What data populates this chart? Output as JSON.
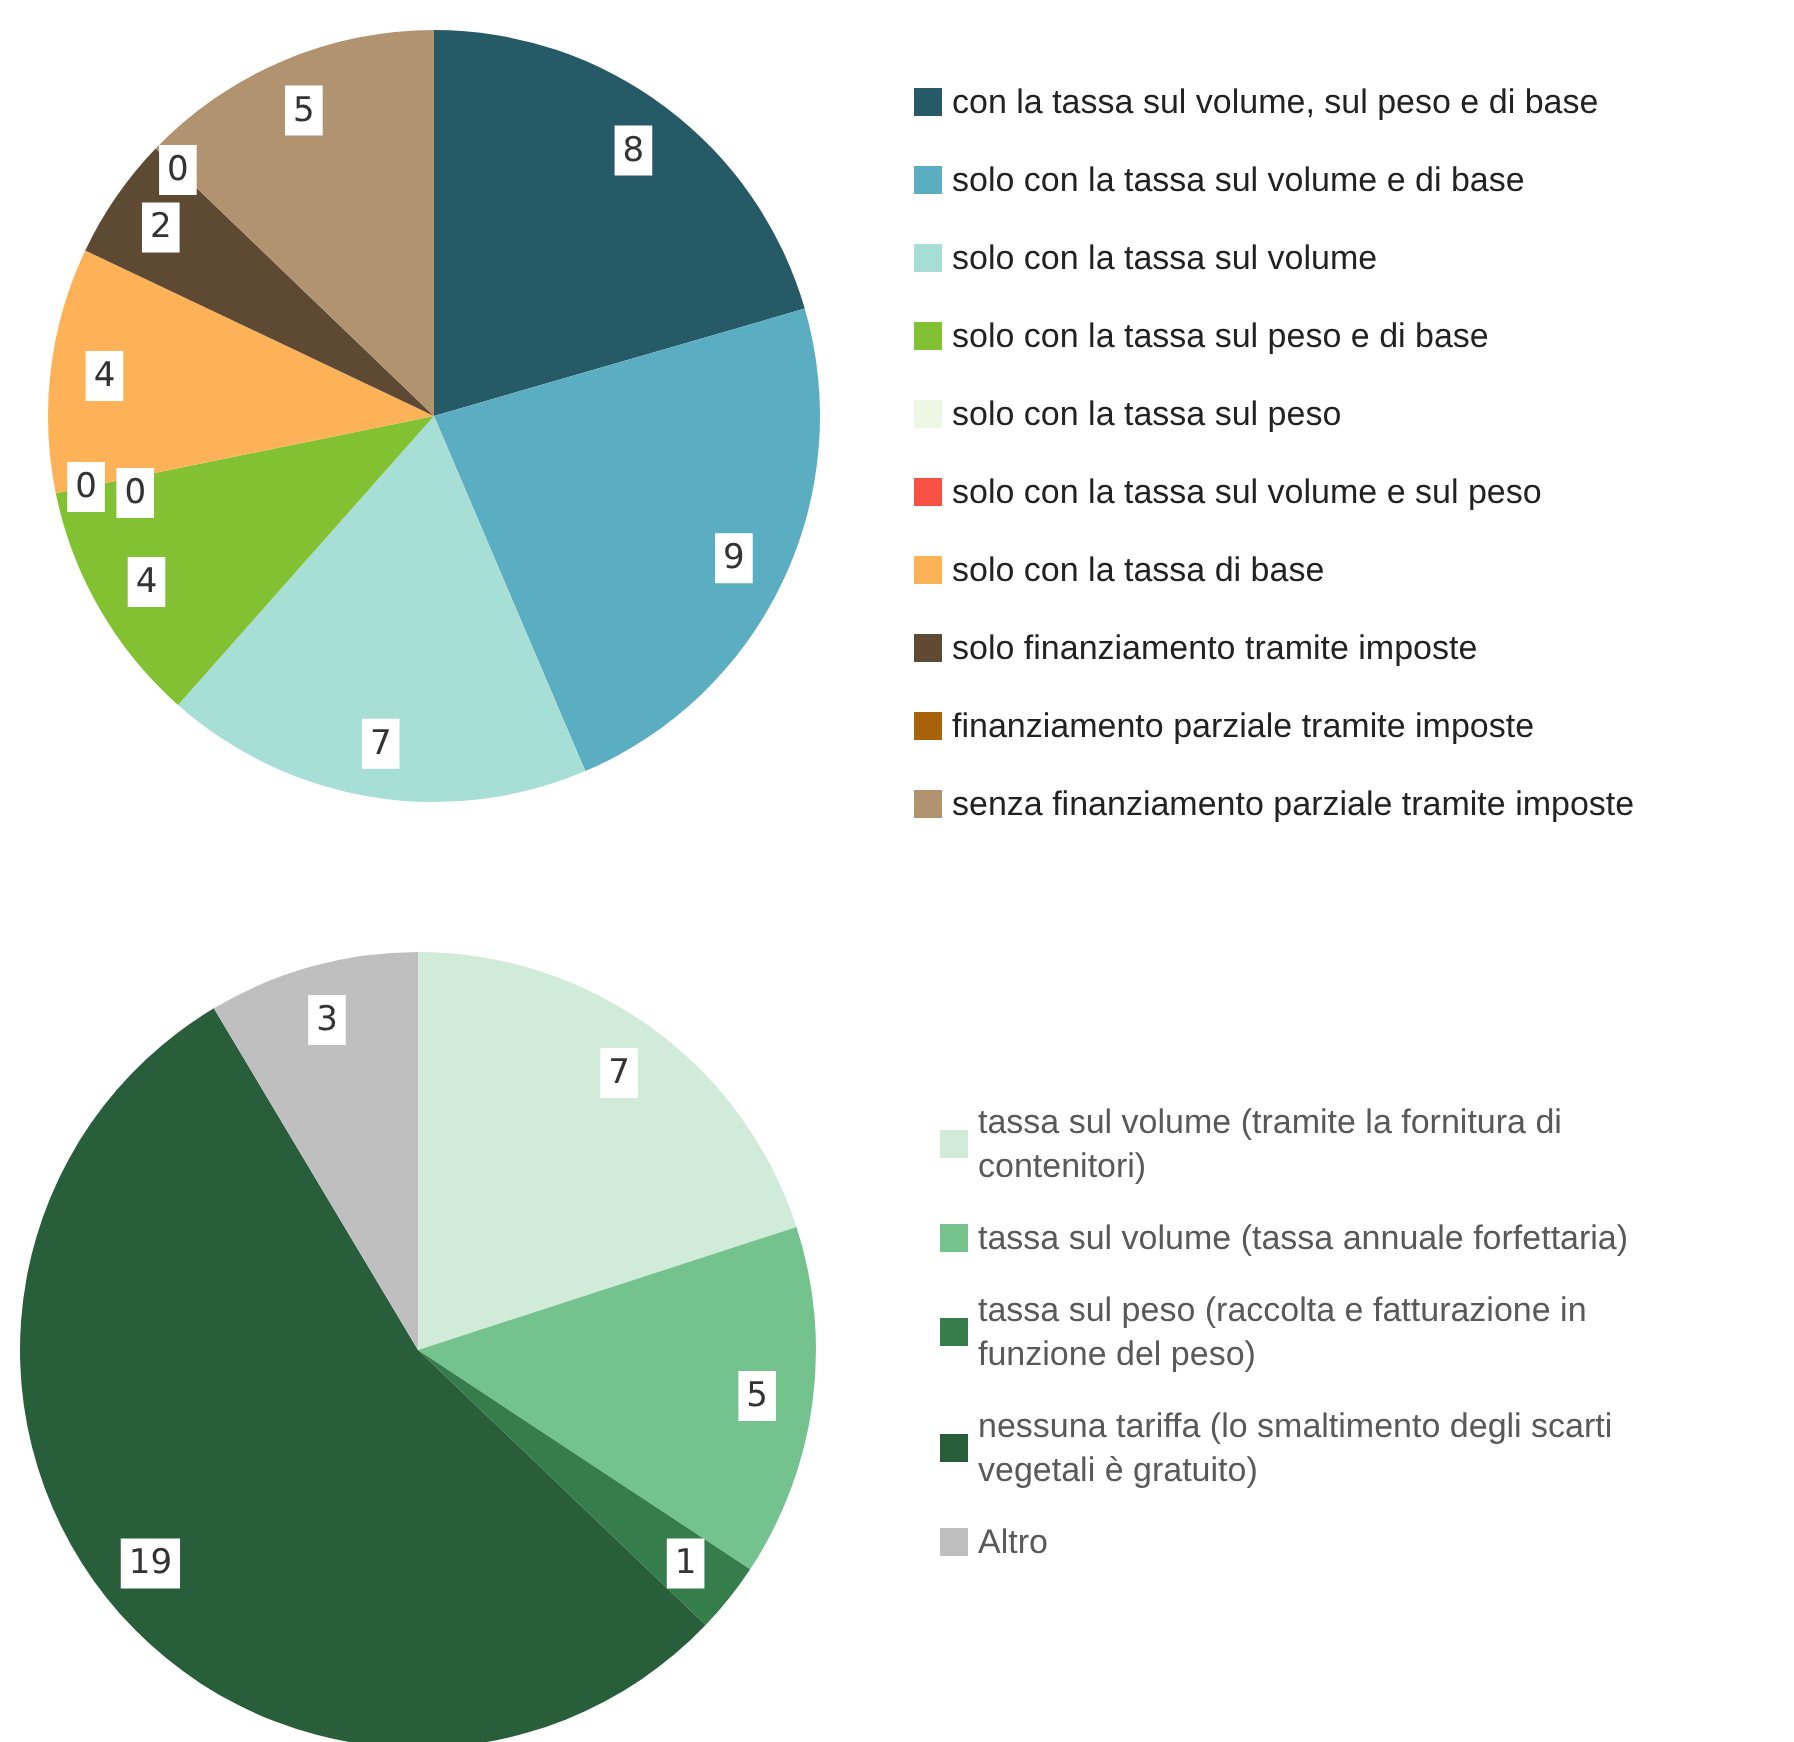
{
  "chart_data": [
    {
      "type": "pie",
      "categories": [
        "con la tassa sul volume, sul peso e di base",
        "solo con la tassa sul volume e di base",
        "solo con la tassa sul volume",
        "solo con la tassa sul peso e di base",
        "solo con la tassa sul peso",
        "solo con la tassa sul volume e sul peso",
        "solo con la tassa di base",
        "solo finanziamento tramite imposte",
        "finanziamento parziale tramite imposte",
        "senza finanziamento parziale tramite imposte"
      ],
      "values": [
        8,
        9,
        7,
        4,
        0,
        0,
        4,
        2,
        0,
        5
      ],
      "colors": [
        "#275a67",
        "#5badc1",
        "#a7ded6",
        "#82c132",
        "#eef6e4",
        "#f95046",
        "#fdb257",
        "#5e4a33",
        "#a8620a",
        "#b29370"
      ],
      "value_labels": [
        "8",
        "9",
        "7",
        "4",
        "0",
        "0",
        "4",
        "2",
        "0",
        "5"
      ],
      "legend": "right"
    },
    {
      "type": "pie",
      "categories": [
        "tassa sul volume (tramite la fornitura di contenitori)",
        "tassa sul volume (tassa annuale forfettaria)",
        "tassa sul peso (raccolta e fatturazione in funzione del peso)",
        "nessuna tariffa (lo smaltimento degli scarti vegetali è gratuito)",
        "Altro"
      ],
      "values": [
        7,
        5,
        1,
        19,
        3
      ],
      "colors": [
        "#d1ebd9",
        "#74c38e",
        "#357e4c",
        "#295e3b",
        "#bfbfbf"
      ],
      "value_labels": [
        "7",
        "5",
        "1",
        "19",
        "3"
      ],
      "legend": "right"
    }
  ]
}
